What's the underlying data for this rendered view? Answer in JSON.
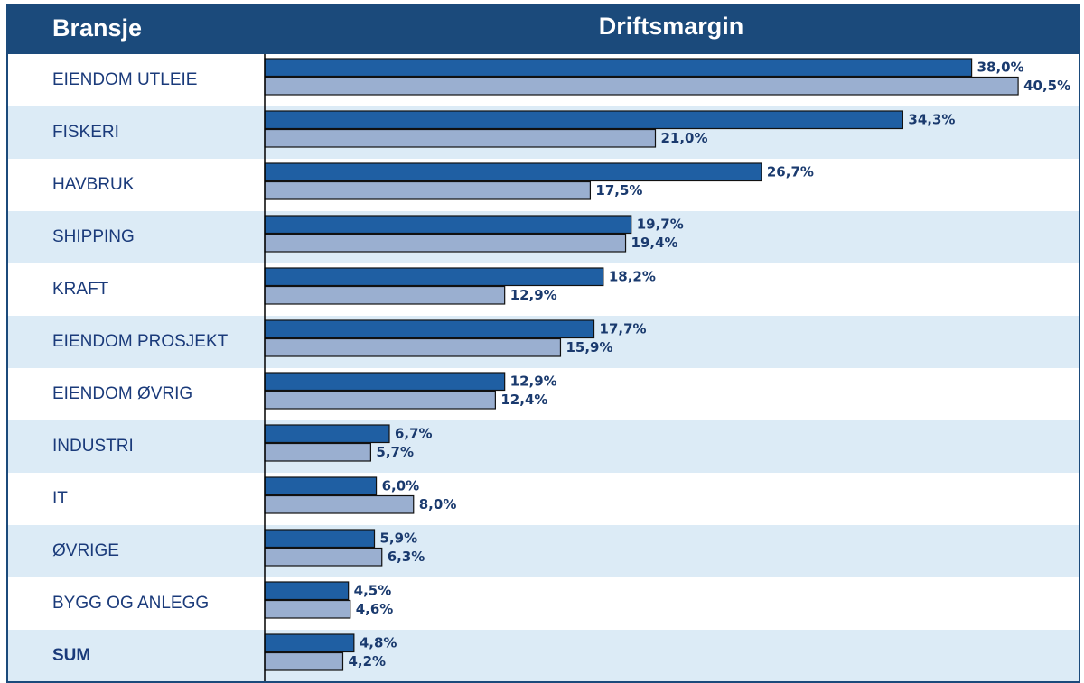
{
  "chart_data": {
    "type": "bar",
    "orientation": "horizontal",
    "category_label": "Bransje",
    "title": "Driftsmargin",
    "categories": [
      "EIENDOM UTLEIE",
      "FISKERI",
      "HAVBRUK",
      "SHIPPING",
      "KRAFT",
      "EIENDOM PROSJEKT",
      "EIENDOM ØVRIG",
      "INDUSTRI",
      "IT",
      "ØVRIGE",
      "BYGG OG ANLEGG",
      "SUM"
    ],
    "series": [
      {
        "color": "#1f5fa3",
        "values": [
          38.0,
          34.3,
          26.7,
          19.7,
          18.2,
          17.7,
          12.9,
          6.7,
          6.0,
          5.9,
          4.5,
          4.8
        ],
        "value_labels": [
          "38,0%",
          "34,3%",
          "26,7%",
          "19,7%",
          "18,2%",
          "17,7%",
          "12,9%",
          "6,7%",
          "6,0%",
          "5,9%",
          "4,5%",
          "4,8%"
        ]
      },
      {
        "color": "#9aafd0",
        "values": [
          40.5,
          21.0,
          17.5,
          19.4,
          12.9,
          15.9,
          12.4,
          5.7,
          8.0,
          6.3,
          4.6,
          4.2
        ],
        "value_labels": [
          "40,5%",
          "21,0%",
          "17,5%",
          "19,4%",
          "12,9%",
          "15,9%",
          "12,4%",
          "5,7%",
          "8,0%",
          "6,3%",
          "4,6%",
          "4,2%"
        ]
      }
    ],
    "xlim": [
      0,
      43.7
    ],
    "bold_category": "SUM"
  }
}
